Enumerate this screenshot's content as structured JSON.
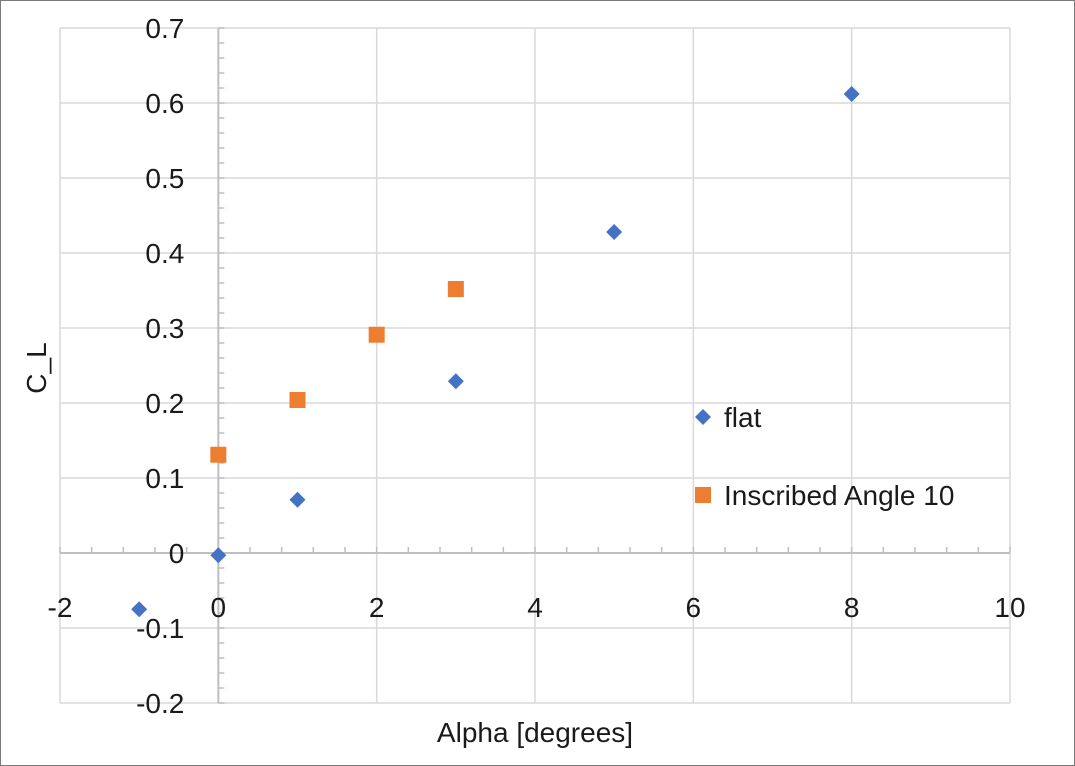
{
  "chart_data": {
    "type": "scatter",
    "title": "",
    "xlabel": "Alpha [degrees]",
    "ylabel": "C_L",
    "xlim": [
      -2,
      10
    ],
    "ylim": [
      -0.2,
      0.7
    ],
    "xticks": [
      -2,
      0,
      2,
      4,
      6,
      8,
      10
    ],
    "yticks": [
      -0.2,
      -0.1,
      0,
      0.1,
      0.2,
      0.3,
      0.4,
      0.5,
      0.6,
      0.7
    ],
    "xtick_labels": [
      "-2",
      "0",
      "2",
      "4",
      "6",
      "8",
      "10"
    ],
    "ytick_labels": [
      "-0.2",
      "-0.1",
      "0",
      "0.1",
      "0.2",
      "0.3",
      "0.4",
      "0.5",
      "0.6",
      "0.7"
    ],
    "grid": true,
    "legend_position": "right",
    "series": [
      {
        "name": "flat",
        "marker": "diamond",
        "color": "#4472C4",
        "x": [
          -1,
          0,
          1,
          3,
          5,
          8
        ],
        "y": [
          -0.075,
          -0.003,
          0.071,
          0.229,
          0.428,
          0.612
        ]
      },
      {
        "name": "Inscribed Angle 10",
        "marker": "square",
        "color": "#ED7D31",
        "x": [
          0,
          1,
          2,
          3
        ],
        "y": [
          0.131,
          0.204,
          0.291,
          0.352
        ]
      }
    ]
  }
}
